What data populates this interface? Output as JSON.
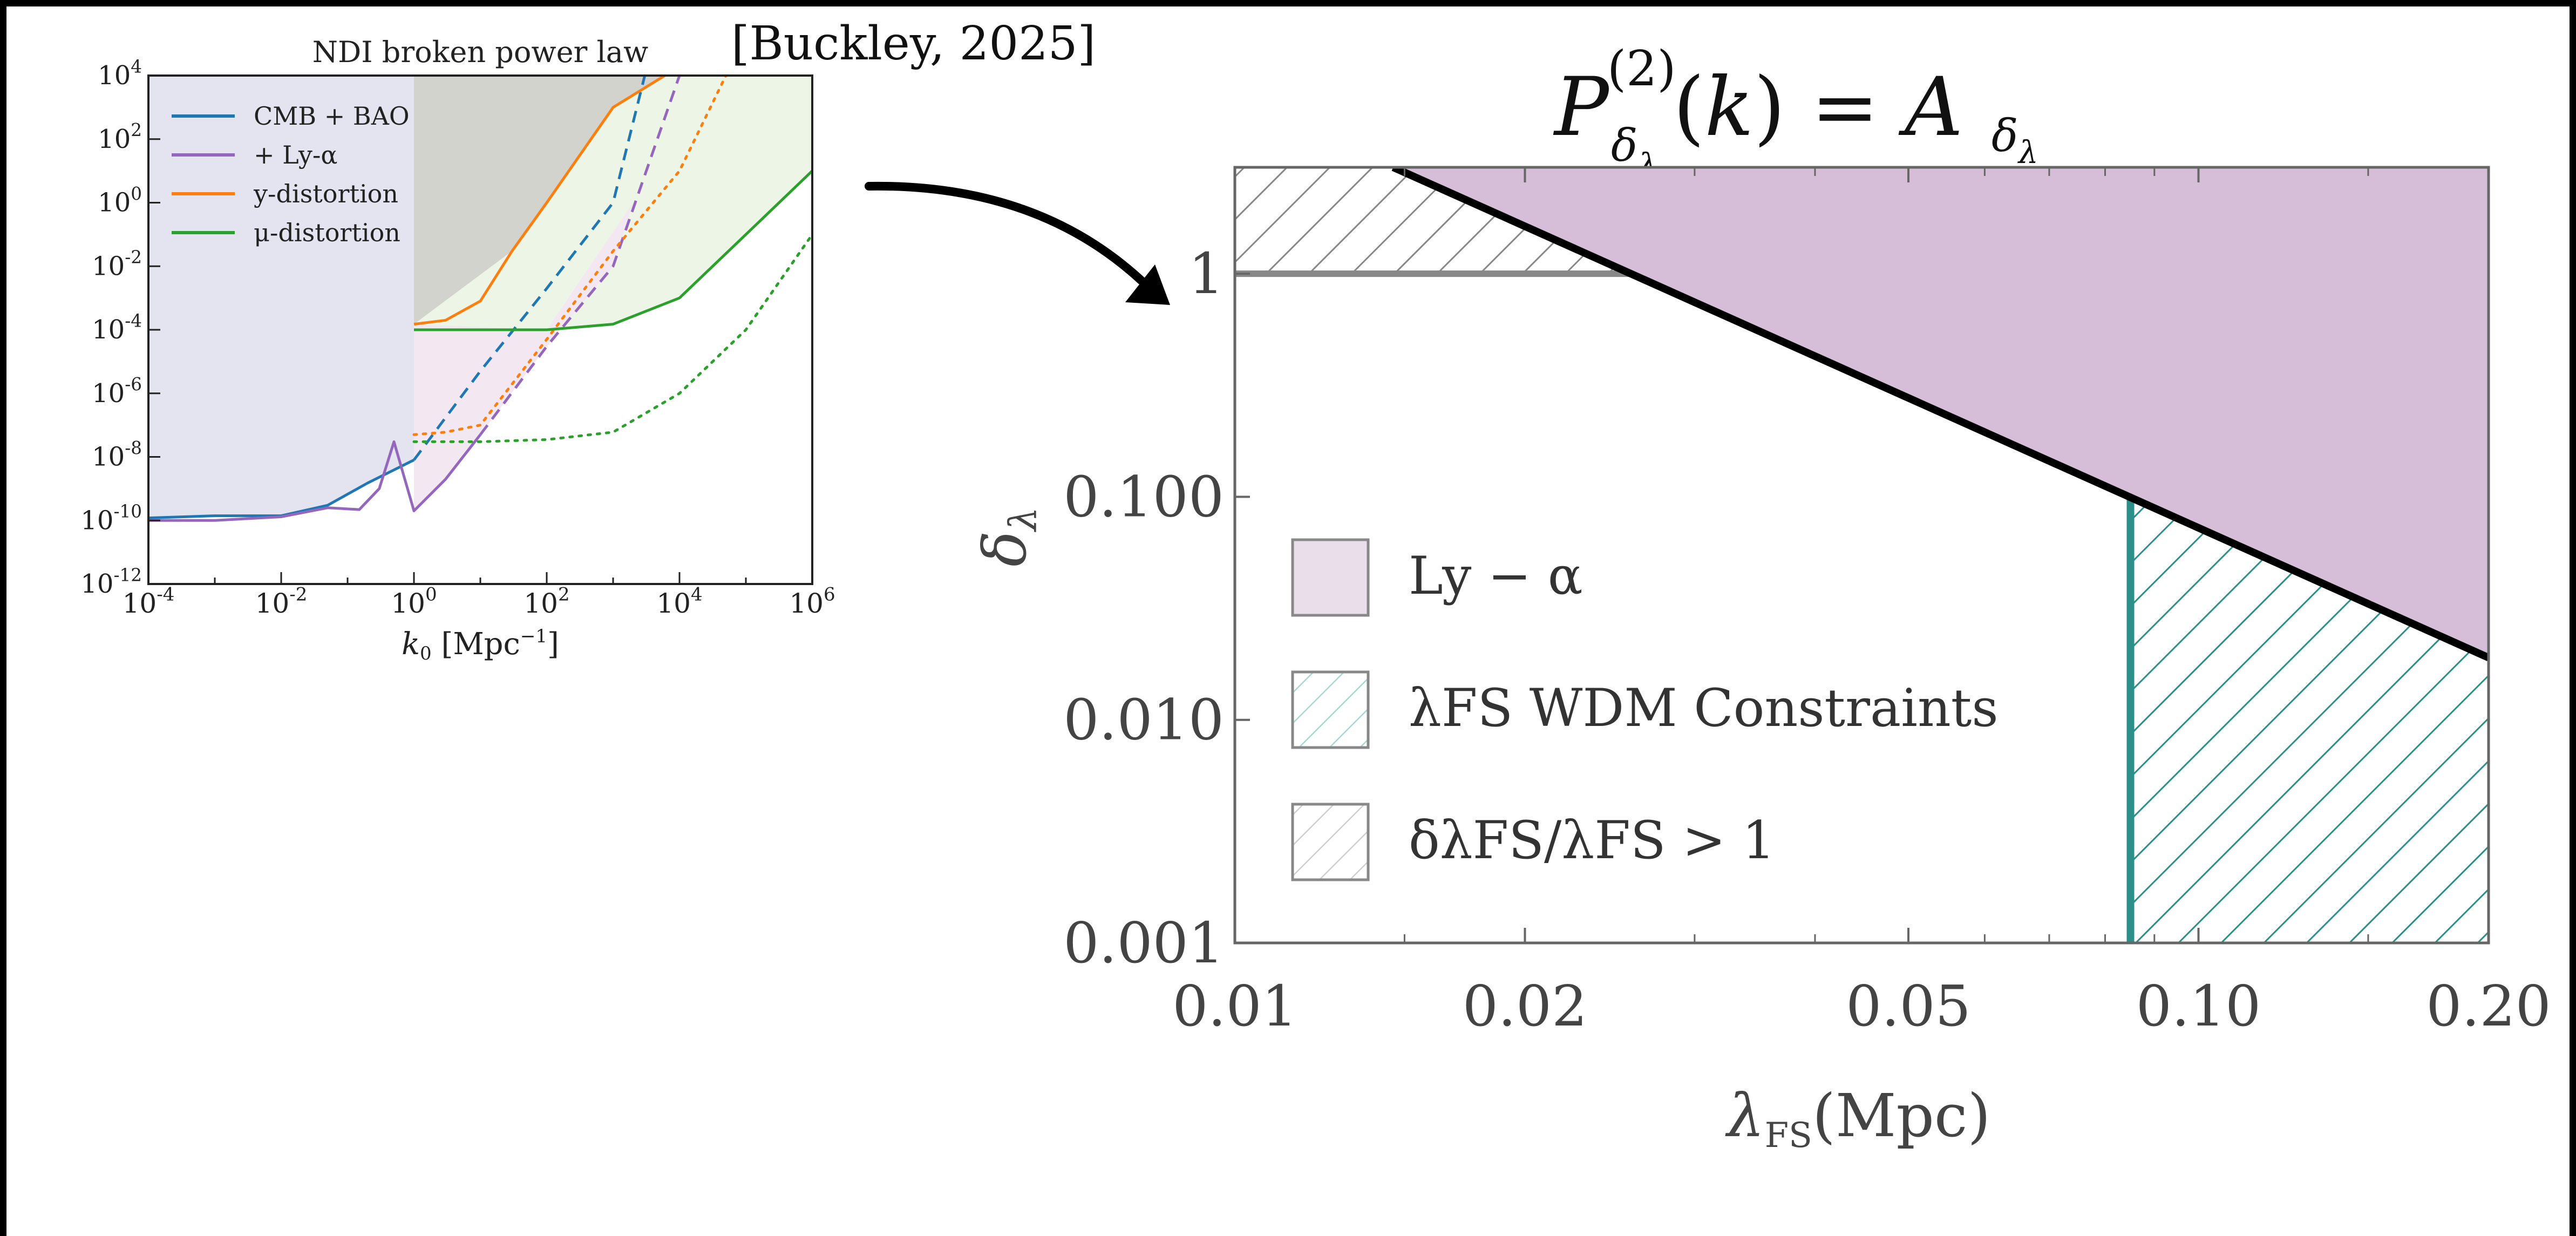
{
  "citation": "[Buckley, 2025]",
  "chart_data": [
    {
      "type": "line",
      "title": "NDI broken power law",
      "xlabel": "k0 [Mpc^-1]",
      "ylabel": "",
      "xscale": "log",
      "yscale": "log",
      "xlim": [
        0.0001,
        1000000
      ],
      "ylim": [
        1e-12,
        10000
      ],
      "x_ticks": [
        "10^-4",
        "10^-2",
        "10^0",
        "10^2",
        "10^4",
        "10^6"
      ],
      "y_ticks": [
        "10^-12",
        "10^-10",
        "10^-8",
        "10^-6",
        "10^-4",
        "10^-2",
        "10^0",
        "10^2",
        "10^4"
      ],
      "legend_position": "top-left",
      "colors": {
        "cmb": "#1f77b4",
        "lya": "#9467bd",
        "y": "#ff7f0e",
        "mu": "#2ca02c",
        "cmb_fill": "#e3e4ef",
        "grey_fill": "#d3d3cd",
        "lya_fill": "#f3e8f1",
        "mu_fill": "#edf5e6"
      },
      "series": [
        {
          "name": "CMB + BAO",
          "color": "#1f77b4",
          "solid": {
            "x": [
              0.0001,
              0.001,
              0.01,
              0.05,
              0.2,
              1.0
            ],
            "y": [
              1.2e-10,
              1.4e-10,
              1.4e-10,
              3e-10,
              1.5e-09,
              8e-09
            ]
          },
          "dashed": {
            "x": [
              1.0,
              10,
              100,
              1000,
              3000
            ],
            "y": [
              8e-09,
              5e-06,
              0.002,
              1.0,
              10000.0
            ]
          }
        },
        {
          "name": "+ Ly-α",
          "color": "#9467bd",
          "solid": {
            "x": [
              0.0001,
              0.001,
              0.01,
              0.05,
              0.15,
              0.3,
              0.5,
              1.0,
              3.0,
              10
            ],
            "y": [
              1e-10,
              1e-10,
              1.3e-10,
              2.5e-10,
              2.2e-10,
              1e-09,
              3e-08,
              2e-10,
              2e-09,
              5e-08
            ]
          },
          "dashed": {
            "x": [
              10,
              100,
              1000,
              10000
            ],
            "y": [
              5e-08,
              3e-05,
              0.01,
              10000.0
            ]
          }
        },
        {
          "name": "y-distortion",
          "color": "#ff7f0e",
          "solid": {
            "x": [
              1.0,
              3,
              10,
              30,
              100,
              1000,
              6000
            ],
            "y": [
              0.00015,
              0.0002,
              0.0008,
              0.03,
              1.0,
              1000.0,
              10000.0
            ]
          },
          "dotted": {
            "x": [
              1.0,
              3,
              10,
              100,
              1000,
              10000,
              50000
            ],
            "y": [
              5e-08,
              6e-08,
              1e-07,
              5e-05,
              0.03,
              10.0,
              10000.0
            ]
          }
        },
        {
          "name": "μ-distortion",
          "color": "#2ca02c",
          "solid": {
            "x": [
              1.0,
              10,
              100,
              1000,
              10000,
              100000,
              1000000
            ],
            "y": [
              0.0001,
              0.0001,
              0.0001,
              0.00015,
              0.001,
              0.1,
              10.0
            ]
          },
          "dotted": {
            "x": [
              1.0,
              10,
              100,
              1000,
              10000,
              100000,
              1000000
            ],
            "y": [
              3e-08,
              3e-08,
              3.5e-08,
              6e-08,
              1e-06,
              0.0001,
              0.1
            ]
          }
        }
      ]
    },
    {
      "type": "area",
      "title": "P_δλ^(2)(k) = A_δλ",
      "xlabel": "λFS(Mpc)",
      "ylabel": "δλ",
      "xscale": "log",
      "yscale": "log",
      "xlim": [
        0.01,
        0.2
      ],
      "ylim": [
        0.001,
        3.0
      ],
      "x_ticks": [
        0.01,
        0.02,
        0.05,
        0.1,
        0.2
      ],
      "x_tick_labels": [
        "0.01",
        "0.02",
        "0.05",
        "0.10",
        "0.20"
      ],
      "y_ticks": [
        0.001,
        0.01,
        0.1,
        1
      ],
      "y_tick_labels": [
        "0.001",
        "0.010",
        "0.100",
        "1"
      ],
      "legend_position": "center-left",
      "colors": {
        "lya": "#d6bed8",
        "wdm": "#2b8f8a",
        "grey": "#888888"
      },
      "lya_boundary": {
        "x": [
          0.0146,
          0.2
        ],
        "y": [
          3.0,
          0.019
        ]
      },
      "wdm_cutoff_x": 0.085,
      "grey_threshold_y": 1,
      "legend": [
        "Ly − α",
        "λFS WDM Constraints",
        "δλFS/λFS > 1"
      ]
    }
  ]
}
